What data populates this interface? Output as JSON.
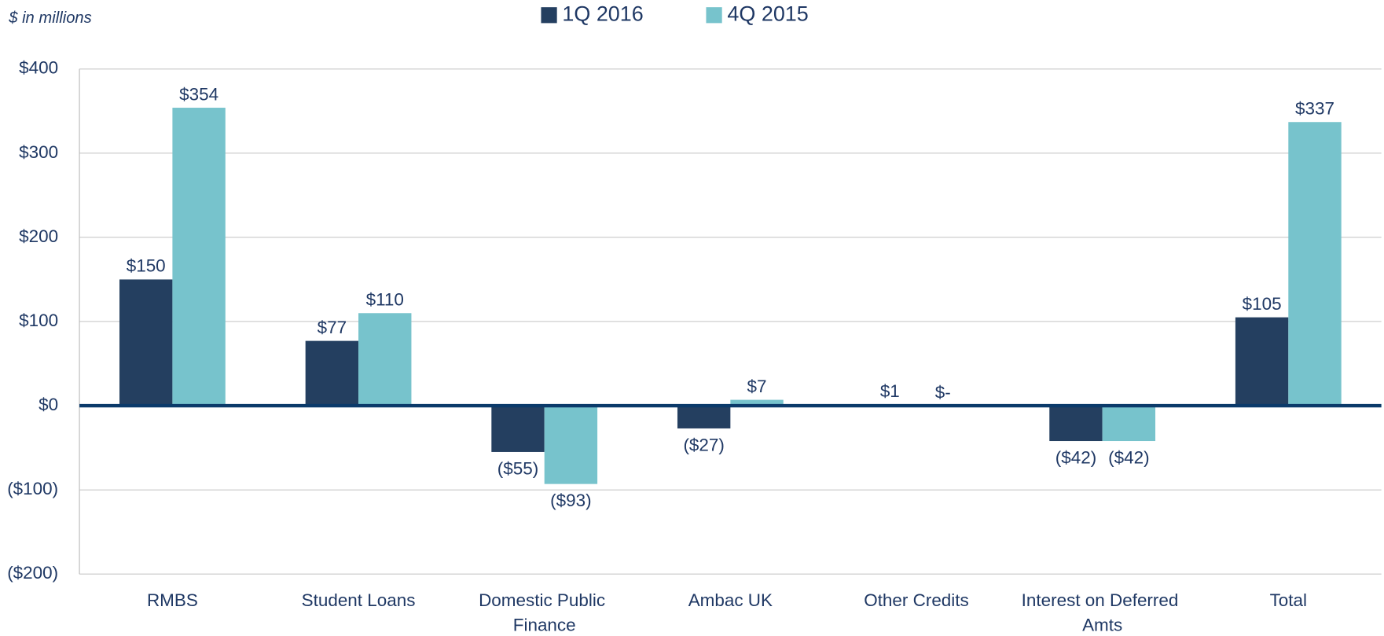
{
  "chart_data": {
    "type": "bar",
    "subtitle": "$ in millions",
    "categories": [
      "RMBS",
      "Student Loans",
      "Domestic Public Finance",
      "Ambac UK",
      "Other Credits",
      "Interest on Deferred Amts",
      "Total"
    ],
    "series": [
      {
        "name": "1Q 2016",
        "color": "#243f60",
        "values": [
          150,
          77,
          -55,
          -27,
          1,
          -42,
          105
        ],
        "value_labels": [
          "$150",
          "$77",
          "($55)",
          "($27)",
          "$1",
          "($42)",
          "$105"
        ]
      },
      {
        "name": "4Q 2015",
        "color": "#77c3cc",
        "values": [
          354,
          110,
          -93,
          7,
          0,
          -42,
          337
        ],
        "value_labels": [
          "$354",
          "$110",
          "($93)",
          "$7",
          "$-",
          "($42)",
          "$337"
        ]
      }
    ],
    "ylim": [
      -200,
      400
    ],
    "yticks": [
      {
        "value": -200,
        "label": "($200)"
      },
      {
        "value": -100,
        "label": "($100)"
      },
      {
        "value": 0,
        "label": "$0"
      },
      {
        "value": 100,
        "label": "$100"
      },
      {
        "value": 200,
        "label": "$200"
      },
      {
        "value": 300,
        "label": "$300"
      },
      {
        "value": 400,
        "label": "$400"
      }
    ],
    "grid": true,
    "legend": "top"
  }
}
